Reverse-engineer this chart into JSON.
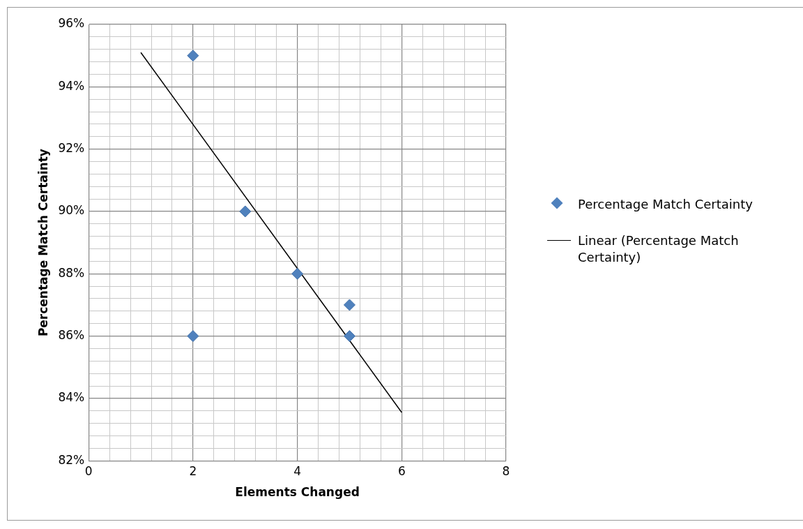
{
  "chart_data": {
    "type": "scatter",
    "xlabel": "Elements Changed",
    "ylabel": "Percentage Match Certainty",
    "series": [
      {
        "name": "Percentage Match Certainty",
        "type": "scatter",
        "color": "#4f81bd",
        "marker": "diamond",
        "x": [
          2,
          3,
          4,
          5,
          5,
          2
        ],
        "values": [
          95,
          90,
          88,
          87,
          86,
          86
        ]
      },
      {
        "name": "Linear (Percentage Match Certainty)",
        "type": "line",
        "color": "#000000",
        "marker": "none",
        "x": [
          1,
          6
        ],
        "values": [
          95.1,
          83.55
        ]
      }
    ],
    "xlim": [
      0,
      8
    ],
    "xticks": [
      0,
      {
        "value": 0.4,
        "label": null
      },
      {
        "value": 0.8,
        "label": null
      },
      {
        "value": 1.2,
        "label": null
      },
      {
        "value": 1.6,
        "label": null
      },
      2,
      {
        "value": 2.4,
        "label": null
      },
      {
        "value": 2.8,
        "label": null
      },
      {
        "value": 3.2,
        "label": null
      },
      {
        "value": 3.6,
        "label": null
      },
      4,
      {
        "value": 4.4,
        "label": null
      },
      {
        "value": 4.8,
        "label": null
      },
      {
        "value": 5.2,
        "label": null
      },
      {
        "value": 5.6,
        "label": null
      },
      6,
      {
        "value": 6.4,
        "label": null
      },
      {
        "value": 6.8,
        "label": null
      },
      {
        "value": 7.2,
        "label": null
      },
      {
        "value": 7.6,
        "label": null
      },
      8
    ],
    "ylim": [
      82,
      96
    ],
    "yticks": [
      {
        "value": 82,
        "label": "82%"
      },
      {
        "value": 82.4,
        "label": null
      },
      {
        "value": 82.8,
        "label": null
      },
      {
        "value": 83.2,
        "label": null
      },
      {
        "value": 83.6,
        "label": null
      },
      {
        "value": 84,
        "label": "84%"
      },
      {
        "value": 84.4,
        "label": null
      },
      {
        "value": 84.8,
        "label": null
      },
      {
        "value": 85.2,
        "label": null
      },
      {
        "value": 85.6,
        "label": null
      },
      {
        "value": 86,
        "label": "86%"
      },
      {
        "value": 86.4,
        "label": null
      },
      {
        "value": 86.8,
        "label": null
      },
      {
        "value": 87.2,
        "label": null
      },
      {
        "value": 87.6,
        "label": null
      },
      {
        "value": 88,
        "label": "88%"
      },
      {
        "value": 88.4,
        "label": null
      },
      {
        "value": 88.8,
        "label": null
      },
      {
        "value": 89.2,
        "label": null
      },
      {
        "value": 89.6,
        "label": null
      },
      {
        "value": 90,
        "label": "90%"
      },
      {
        "value": 90.4,
        "label": null
      },
      {
        "value": 90.8,
        "label": null
      },
      {
        "value": 91.2,
        "label": null
      },
      {
        "value": 91.6,
        "label": null
      },
      {
        "value": 92,
        "label": "92%"
      },
      {
        "value": 92.4,
        "label": null
      },
      {
        "value": 92.8,
        "label": null
      },
      {
        "value": 93.2,
        "label": null
      },
      {
        "value": 93.6,
        "label": null
      },
      {
        "value": 94,
        "label": "94%"
      },
      {
        "value": 94.4,
        "label": null
      },
      {
        "value": 94.8,
        "label": null
      },
      {
        "value": 95.2,
        "label": null
      },
      {
        "value": 95.6,
        "label": null
      },
      {
        "value": 96,
        "label": "96%"
      }
    ],
    "grid": true,
    "legend": "right"
  }
}
